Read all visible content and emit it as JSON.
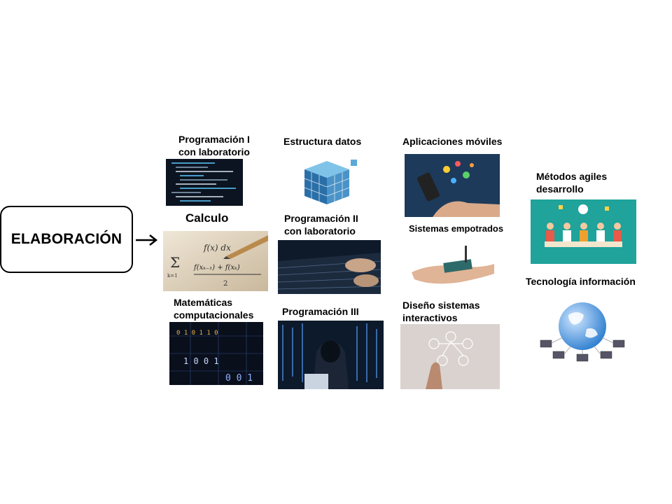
{
  "main": {
    "label": "ELABORACIÓN"
  },
  "subjects": {
    "prog1": [
      "Programación I",
      "con laboratorio"
    ],
    "calculo": [
      "Calculo"
    ],
    "mat_comp": [
      "Matemáticas",
      "computacionales"
    ],
    "estructura": [
      "Estructura datos"
    ],
    "prog2": [
      "Programación II",
      "con laboratorio"
    ],
    "prog3": [
      "Programación III"
    ],
    "apps": [
      "Aplicaciones móviles"
    ],
    "empotrados": [
      "Sistemas empotrados"
    ],
    "diseno": [
      "Diseño sistemas",
      "interactivos"
    ],
    "metodos": [
      "Métodos agiles",
      "desarrollo"
    ],
    "tecnologia": [
      "Tecnología información"
    ]
  },
  "image_text": {
    "calc_formula_1": "f(x) dx",
    "calc_formula_2": "f(xₖ₋₁) + f(xₖ)",
    "calc_denominator": "2",
    "calc_sum_index": "k=1",
    "binary_1": "0 1 0 1 1 0",
    "binary_2": "1 0 0 1",
    "binary_3": "0 0 1"
  }
}
